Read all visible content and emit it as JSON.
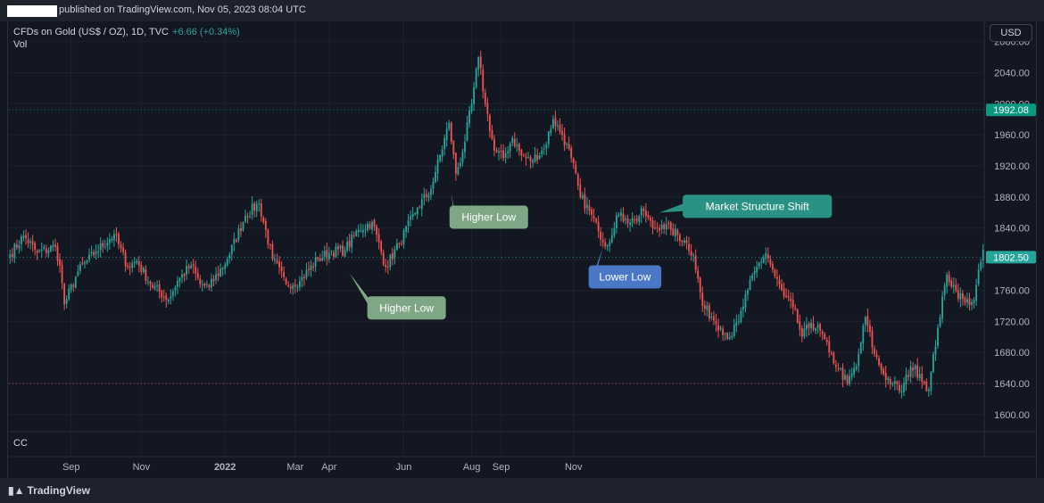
{
  "header": {
    "published": "published on TradingView.com, Nov 05, 2023 08:04 UTC"
  },
  "legend": {
    "symbol": "CFDs on Gold (US$ / OZ), 1D, TVC",
    "change": "+6.66 (+0.34%)",
    "vol": "Vol"
  },
  "lower_pane": {
    "label": "CC"
  },
  "currency_button": "USD",
  "footer": {
    "logo_text": "TradingView"
  },
  "colors": {
    "up": "#26a69a",
    "down": "#ef5350",
    "bg": "#131722",
    "grid": "#1e222d",
    "text": "#b2b5be",
    "accent": "#089981",
    "last": "#26a69a"
  },
  "chart_data": {
    "type": "candlestick",
    "x_axis": {
      "ticks": [
        "Sep",
        "Nov",
        "2022",
        "Mar",
        "Apr",
        "Jun",
        "Aug",
        "Sep",
        "Nov"
      ]
    },
    "y_axis": {
      "ticks": [
        1600,
        1640,
        1680,
        1720,
        1760,
        1800,
        1840,
        1880,
        1920,
        1960,
        2000,
        2040,
        2080
      ],
      "ylim": [
        1578,
        2106
      ]
    },
    "price_lines": [
      {
        "label": "1992.08",
        "value": 1992.08,
        "color": "#089981"
      },
      {
        "label": "1802.50",
        "value": 1802.5,
        "color": "#26a69a"
      },
      {
        "value": 1640,
        "color": "#ef5350"
      }
    ],
    "annotations": [
      {
        "text": "Higher Low",
        "color": "#7fa685",
        "ref_date_index": 150,
        "ref_price": 1782
      },
      {
        "text": "Higher Low",
        "color": "#7fa685",
        "ref_date_index": 195,
        "ref_price": 1885
      },
      {
        "text": "Lower Low",
        "color": "#4a78c6",
        "ref_date_index": 262,
        "ref_price": 1815
      },
      {
        "text": "Market Structure Shift",
        "color": "#2a9185",
        "ref_date_index": 287,
        "ref_price": 1860
      }
    ],
    "anchors": [
      [
        0,
        1806
      ],
      [
        6,
        1830
      ],
      [
        12,
        1808
      ],
      [
        20,
        1816
      ],
      [
        22,
        1792
      ],
      [
        24,
        1742
      ],
      [
        30,
        1784
      ],
      [
        38,
        1810
      ],
      [
        46,
        1832
      ],
      [
        52,
        1790
      ],
      [
        56,
        1798
      ],
      [
        62,
        1768
      ],
      [
        70,
        1748
      ],
      [
        74,
        1772
      ],
      [
        80,
        1792
      ],
      [
        84,
        1768
      ],
      [
        88,
        1764
      ],
      [
        96,
        1800
      ],
      [
        104,
        1856
      ],
      [
        110,
        1872
      ],
      [
        116,
        1800
      ],
      [
        122,
        1768
      ],
      [
        128,
        1772
      ],
      [
        136,
        1800
      ],
      [
        142,
        1810
      ],
      [
        148,
        1812
      ],
      [
        154,
        1838
      ],
      [
        160,
        1848
      ],
      [
        166,
        1790
      ],
      [
        172,
        1820
      ],
      [
        180,
        1866
      ],
      [
        186,
        1890
      ],
      [
        188,
        1912
      ],
      [
        194,
        1975
      ],
      [
        197,
        1910
      ],
      [
        200,
        1938
      ],
      [
        204,
        2000
      ],
      [
        207,
        2060
      ],
      [
        210,
        2000
      ],
      [
        214,
        1940
      ],
      [
        218,
        1930
      ],
      [
        222,
        1956
      ],
      [
        226,
        1934
      ],
      [
        230,
        1926
      ],
      [
        236,
        1942
      ],
      [
        240,
        1980
      ],
      [
        244,
        1960
      ],
      [
        248,
        1930
      ],
      [
        252,
        1880
      ],
      [
        256,
        1862
      ],
      [
        260,
        1836
      ],
      [
        264,
        1818
      ],
      [
        268,
        1856
      ],
      [
        272,
        1852
      ],
      [
        276,
        1850
      ],
      [
        280,
        1862
      ],
      [
        284,
        1840
      ],
      [
        288,
        1844
      ],
      [
        292,
        1838
      ],
      [
        298,
        1824
      ],
      [
        302,
        1806
      ],
      [
        306,
        1740
      ],
      [
        310,
        1726
      ],
      [
        314,
        1712
      ],
      [
        318,
        1700
      ],
      [
        322,
        1720
      ],
      [
        326,
        1760
      ],
      [
        330,
        1790
      ],
      [
        334,
        1808
      ],
      [
        338,
        1778
      ],
      [
        342,
        1752
      ],
      [
        346,
        1738
      ],
      [
        350,
        1700
      ],
      [
        354,
        1718
      ],
      [
        358,
        1708
      ],
      [
        362,
        1680
      ],
      [
        366,
        1660
      ],
      [
        370,
        1640
      ],
      [
        374,
        1662
      ],
      [
        378,
        1725
      ],
      [
        382,
        1678
      ],
      [
        386,
        1652
      ],
      [
        390,
        1640
      ],
      [
        394,
        1630
      ],
      [
        398,
        1662
      ],
      [
        402,
        1652
      ],
      [
        406,
        1632
      ],
      [
        410,
        1712
      ],
      [
        414,
        1780
      ],
      [
        418,
        1760
      ],
      [
        422,
        1744
      ],
      [
        426,
        1748
      ],
      [
        430,
        1812
      ]
    ],
    "last_value": 1992.08
  }
}
